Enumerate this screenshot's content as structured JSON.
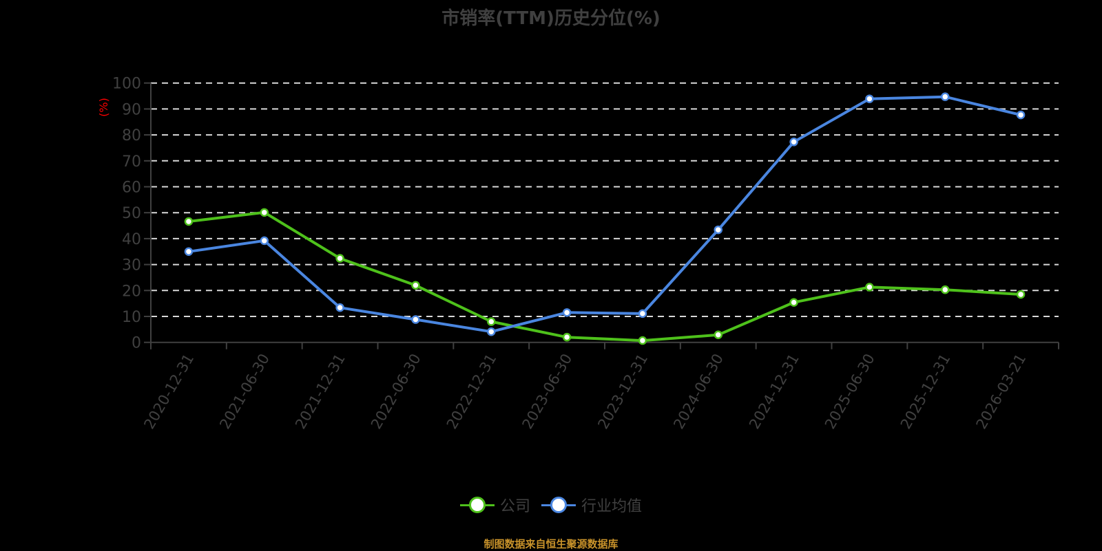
{
  "title": "市销率(TTM)历史分位(%)",
  "source_note": "制图数据来自恒生聚源数据库",
  "legend": [
    {
      "label": "公司",
      "color": "#4EC11B"
    },
    {
      "label": "行业均值",
      "color": "#4A86E0"
    }
  ],
  "colors": {
    "background": "#000000",
    "axis": "#404040",
    "tick_label": "#404040",
    "grid": "#D9D9D9",
    "ylabel": "#FF0000"
  },
  "chart_data": {
    "type": "line",
    "title": "市销率(TTM)历史分位(%)",
    "xlabel": "",
    "ylabel": "(%)",
    "ylim": [
      0,
      100
    ],
    "yticks": [
      0,
      10,
      20,
      30,
      40,
      50,
      60,
      70,
      80,
      90,
      100
    ],
    "grid": true,
    "grid_style": "dashed",
    "legend_position": "bottom",
    "categories": [
      "2020-12-31",
      "2021-06-30",
      "2021-12-31",
      "2022-06-30",
      "2022-12-31",
      "2023-06-30",
      "2023-12-31",
      "2024-06-30",
      "2024-12-31",
      "2025-06-30",
      "2025-12-31",
      "2026-03-21"
    ],
    "series": [
      {
        "name": "公司",
        "color": "#4EC11B",
        "values": [
          46.6,
          50.1,
          32.4,
          22.0,
          8.0,
          2.0,
          0.7,
          2.9,
          15.4,
          21.3,
          20.3,
          18.5
        ]
      },
      {
        "name": "行业均值",
        "color": "#4A86E0",
        "values": [
          35.0,
          39.2,
          13.4,
          8.8,
          4.1,
          11.5,
          11.1,
          43.4,
          77.3,
          93.9,
          94.7,
          87.7
        ]
      }
    ]
  }
}
